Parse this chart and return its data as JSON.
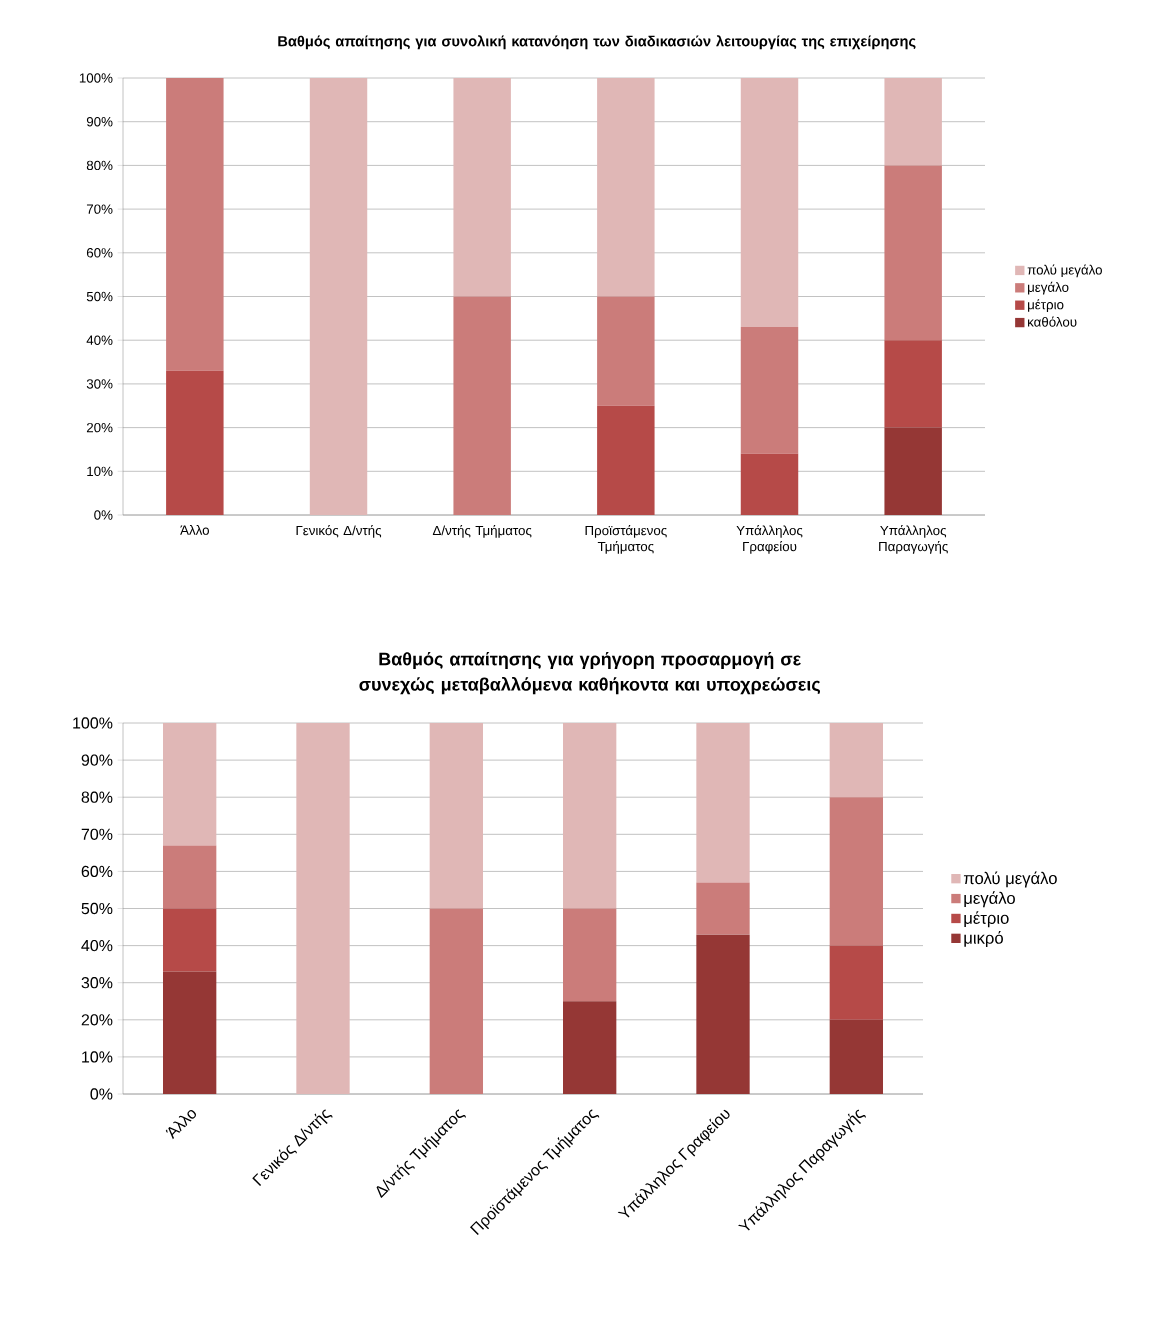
{
  "chart_data": [
    {
      "type": "bar",
      "stacked": true,
      "title": "Βαθμός απαίτησης για συνολική κατανόηση των διαδικασιών λειτουργίας της επιχείρησης",
      "categories": [
        "Άλλο",
        "Γενικός Δ/ντής",
        "Δ/ντής Τμήματος",
        "Προϊστάμενος Τμήματος",
        "Υπάλληλος Γραφείου",
        "Υπάλληλος Παραγωγής"
      ],
      "series": [
        {
          "name": "καθόλου",
          "color": "#953735",
          "values": [
            0,
            0,
            0,
            0,
            0,
            20
          ]
        },
        {
          "name": "μέτριο",
          "color": "#b64a48",
          "values": [
            33,
            0,
            0,
            25,
            14,
            20
          ]
        },
        {
          "name": "μεγάλο",
          "color": "#cb7c7a",
          "values": [
            67,
            0,
            50,
            25,
            29,
            40
          ]
        },
        {
          "name": "πολύ μεγάλο",
          "color": "#e0b7b6",
          "values": [
            0,
            100,
            50,
            50,
            57,
            20
          ]
        }
      ],
      "ylim": [
        0,
        100
      ],
      "yticks": [
        {
          "value": 0,
          "label": "0%"
        },
        {
          "value": 10,
          "label": "10%"
        },
        {
          "value": 20,
          "label": "20%"
        },
        {
          "value": 30,
          "label": "30%"
        },
        {
          "value": 40,
          "label": "40%"
        },
        {
          "value": 50,
          "label": "50%"
        },
        {
          "value": 60,
          "label": "60%"
        },
        {
          "value": 70,
          "label": "70%"
        },
        {
          "value": 80,
          "label": "80%"
        },
        {
          "value": 90,
          "label": "90%"
        },
        {
          "value": 100,
          "label": "100%"
        }
      ],
      "grid": "y",
      "legend": "right"
    },
    {
      "type": "bar",
      "stacked": true,
      "title": "Βαθμός απαίτησης για γρήγορη προσαρμογή σε συνεχώς μεταβαλλόμενα καθήκοντα και υποχρεώσεις",
      "categories": [
        "Άλλο",
        "Γενικός Δ/ντής",
        "Δ/ντής Τμήματος",
        "Προϊστάμενος Τμήματος",
        "Υπάλληλος Γραφείου",
        "Υπάλληλος Παραγωγής"
      ],
      "series": [
        {
          "name": "μικρό",
          "color": "#953735",
          "values": [
            33,
            0,
            0,
            25,
            43,
            20
          ]
        },
        {
          "name": "μέτριο",
          "color": "#b64a48",
          "values": [
            17,
            0,
            0,
            0,
            0,
            20
          ]
        },
        {
          "name": "μεγάλο",
          "color": "#cb7c7a",
          "values": [
            17,
            0,
            50,
            25,
            14,
            40
          ]
        },
        {
          "name": "πολύ μεγάλο",
          "color": "#e0b7b6",
          "values": [
            33,
            100,
            50,
            50,
            43,
            20
          ]
        }
      ],
      "ylim": [
        0,
        100
      ],
      "yticks": [
        {
          "value": 0,
          "label": "0%"
        },
        {
          "value": 10,
          "label": "10%"
        },
        {
          "value": 20,
          "label": "20%"
        },
        {
          "value": 30,
          "label": "30%"
        },
        {
          "value": 40,
          "label": "40%"
        },
        {
          "value": 50,
          "label": "50%"
        },
        {
          "value": 60,
          "label": "60%"
        },
        {
          "value": 70,
          "label": "70%"
        },
        {
          "value": 80,
          "label": "80%"
        },
        {
          "value": 90,
          "label": "90%"
        },
        {
          "value": 100,
          "label": "100%"
        }
      ],
      "grid": "y",
      "legend": "right"
    }
  ]
}
